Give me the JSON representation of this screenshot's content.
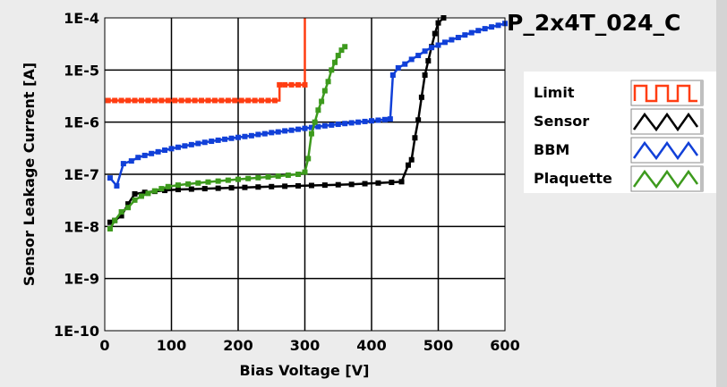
{
  "chart_data": {
    "type": "line",
    "title": "P_2x4T_024_C",
    "xlabel": "Bias Voltage [V]",
    "ylabel": "Sensor Leakage Current [A]",
    "xlim": [
      0,
      600
    ],
    "ylim": [
      1e-10,
      0.0001
    ],
    "y_scale": "log",
    "grid": true,
    "legend_position": "right",
    "x_ticks": [
      0,
      100,
      200,
      300,
      400,
      500,
      600
    ],
    "y_ticks": [
      {
        "value": 1e-10,
        "label": "1E-10"
      },
      {
        "value": 1e-09,
        "label": "1E-9"
      },
      {
        "value": 1e-08,
        "label": "1E-8"
      },
      {
        "value": 1e-07,
        "label": "1E-7"
      },
      {
        "value": 1e-06,
        "label": "1E-6"
      },
      {
        "value": 1e-05,
        "label": "1E-5"
      },
      {
        "value": 0.0001,
        "label": "1E-4"
      }
    ],
    "series": [
      {
        "name": "Limit",
        "color": "#ff3d12",
        "step": true,
        "points": [
          [
            5,
            2.6e-06
          ],
          [
            15,
            2.6e-06
          ],
          [
            25,
            2.6e-06
          ],
          [
            35,
            2.6e-06
          ],
          [
            45,
            2.6e-06
          ],
          [
            55,
            2.6e-06
          ],
          [
            65,
            2.6e-06
          ],
          [
            75,
            2.6e-06
          ],
          [
            85,
            2.6e-06
          ],
          [
            95,
            2.6e-06
          ],
          [
            105,
            2.6e-06
          ],
          [
            115,
            2.6e-06
          ],
          [
            125,
            2.6e-06
          ],
          [
            135,
            2.6e-06
          ],
          [
            145,
            2.6e-06
          ],
          [
            155,
            2.6e-06
          ],
          [
            165,
            2.6e-06
          ],
          [
            175,
            2.6e-06
          ],
          [
            185,
            2.6e-06
          ],
          [
            195,
            2.6e-06
          ],
          [
            205,
            2.6e-06
          ],
          [
            215,
            2.6e-06
          ],
          [
            225,
            2.6e-06
          ],
          [
            235,
            2.6e-06
          ],
          [
            245,
            2.6e-06
          ],
          [
            255,
            2.6e-06
          ],
          [
            262,
            5.2e-06
          ],
          [
            270,
            5.2e-06
          ],
          [
            280,
            5.2e-06
          ],
          [
            290,
            5.2e-06
          ],
          [
            300,
            5.2e-06
          ],
          [
            300,
            0.0001
          ]
        ]
      },
      {
        "name": "Sensor",
        "color": "#000000",
        "step": false,
        "points": [
          [
            8,
            1.2e-08
          ],
          [
            15,
            1.3e-08
          ],
          [
            25,
            1.6e-08
          ],
          [
            35,
            2.7e-08
          ],
          [
            45,
            4.2e-08
          ],
          [
            60,
            4.5e-08
          ],
          [
            75,
            4.7e-08
          ],
          [
            90,
            4.9e-08
          ],
          [
            110,
            5.1e-08
          ],
          [
            130,
            5.2e-08
          ],
          [
            150,
            5.3e-08
          ],
          [
            170,
            5.4e-08
          ],
          [
            190,
            5.5e-08
          ],
          [
            210,
            5.6e-08
          ],
          [
            230,
            5.7e-08
          ],
          [
            250,
            5.8e-08
          ],
          [
            270,
            5.9e-08
          ],
          [
            290,
            6e-08
          ],
          [
            310,
            6.1e-08
          ],
          [
            330,
            6.2e-08
          ],
          [
            350,
            6.3e-08
          ],
          [
            370,
            6.4e-08
          ],
          [
            390,
            6.6e-08
          ],
          [
            410,
            6.8e-08
          ],
          [
            430,
            7e-08
          ],
          [
            445,
            7.2e-08
          ],
          [
            455,
            1.5e-07
          ],
          [
            460,
            1.9e-07
          ],
          [
            465,
            5e-07
          ],
          [
            470,
            1.1e-06
          ],
          [
            475,
            3e-06
          ],
          [
            480,
            8e-06
          ],
          [
            485,
            1.5e-05
          ],
          [
            490,
            2.8e-05
          ],
          [
            495,
            5e-05
          ],
          [
            500,
            8e-05
          ],
          [
            508,
            0.0001
          ]
        ]
      },
      {
        "name": "BBM",
        "color": "#1140d8",
        "step": false,
        "points": [
          [
            8,
            8.5e-08
          ],
          [
            18,
            6e-08
          ],
          [
            28,
            1.6e-07
          ],
          [
            40,
            1.8e-07
          ],
          [
            50,
            2.1e-07
          ],
          [
            60,
            2.3e-07
          ],
          [
            70,
            2.5e-07
          ],
          [
            80,
            2.7e-07
          ],
          [
            90,
            2.9e-07
          ],
          [
            100,
            3.1e-07
          ],
          [
            110,
            3.3e-07
          ],
          [
            120,
            3.5e-07
          ],
          [
            130,
            3.7e-07
          ],
          [
            140,
            3.9e-07
          ],
          [
            150,
            4.1e-07
          ],
          [
            160,
            4.3e-07
          ],
          [
            170,
            4.5e-07
          ],
          [
            180,
            4.7e-07
          ],
          [
            190,
            4.9e-07
          ],
          [
            200,
            5.1e-07
          ],
          [
            210,
            5.3e-07
          ],
          [
            220,
            5.5e-07
          ],
          [
            230,
            5.8e-07
          ],
          [
            240,
            6e-07
          ],
          [
            250,
            6.3e-07
          ],
          [
            260,
            6.5e-07
          ],
          [
            270,
            6.8e-07
          ],
          [
            280,
            7e-07
          ],
          [
            290,
            7.3e-07
          ],
          [
            300,
            7.6e-07
          ],
          [
            310,
            7.9e-07
          ],
          [
            320,
            8.2e-07
          ],
          [
            330,
            8.5e-07
          ],
          [
            340,
            8.8e-07
          ],
          [
            350,
            9.1e-07
          ],
          [
            360,
            9.4e-07
          ],
          [
            370,
            9.7e-07
          ],
          [
            380,
            1e-06
          ],
          [
            390,
            1.03e-06
          ],
          [
            400,
            1.06e-06
          ],
          [
            410,
            1.09e-06
          ],
          [
            420,
            1.12e-06
          ],
          [
            428,
            1.15e-06
          ],
          [
            432,
            8e-06
          ],
          [
            440,
            1.1e-05
          ],
          [
            450,
            1.3e-05
          ],
          [
            460,
            1.6e-05
          ],
          [
            470,
            1.9e-05
          ],
          [
            480,
            2.3e-05
          ],
          [
            490,
            2.7e-05
          ],
          [
            500,
            3e-05
          ],
          [
            510,
            3.4e-05
          ],
          [
            520,
            3.8e-05
          ],
          [
            530,
            4.2e-05
          ],
          [
            540,
            4.7e-05
          ],
          [
            550,
            5.2e-05
          ],
          [
            560,
            5.7e-05
          ],
          [
            570,
            6.2e-05
          ],
          [
            580,
            6.7e-05
          ],
          [
            590,
            7.2e-05
          ],
          [
            600,
            7.8e-05
          ]
        ]
      },
      {
        "name": "Plaquette",
        "color": "#3d9a1d",
        "step": false,
        "points": [
          [
            8,
            9e-09
          ],
          [
            15,
            1.3e-08
          ],
          [
            25,
            1.9e-08
          ],
          [
            35,
            2.3e-08
          ],
          [
            45,
            3.2e-08
          ],
          [
            55,
            3.8e-08
          ],
          [
            65,
            4.3e-08
          ],
          [
            75,
            4.8e-08
          ],
          [
            85,
            5.3e-08
          ],
          [
            95,
            5.8e-08
          ],
          [
            110,
            6.2e-08
          ],
          [
            125,
            6.5e-08
          ],
          [
            140,
            6.8e-08
          ],
          [
            155,
            7.1e-08
          ],
          [
            170,
            7.4e-08
          ],
          [
            185,
            7.7e-08
          ],
          [
            200,
            8e-08
          ],
          [
            215,
            8.3e-08
          ],
          [
            230,
            8.6e-08
          ],
          [
            245,
            8.9e-08
          ],
          [
            260,
            9.2e-08
          ],
          [
            275,
            9.6e-08
          ],
          [
            290,
            1e-07
          ],
          [
            300,
            1.1e-07
          ],
          [
            305,
            2e-07
          ],
          [
            310,
            6e-07
          ],
          [
            315,
            1e-06
          ],
          [
            320,
            1.7e-06
          ],
          [
            325,
            2.5e-06
          ],
          [
            330,
            4e-06
          ],
          [
            335,
            6e-06
          ],
          [
            340,
            1e-05
          ],
          [
            345,
            1.4e-05
          ],
          [
            350,
            1.9e-05
          ],
          [
            355,
            2.4e-05
          ],
          [
            360,
            2.8e-05
          ]
        ]
      }
    ]
  }
}
